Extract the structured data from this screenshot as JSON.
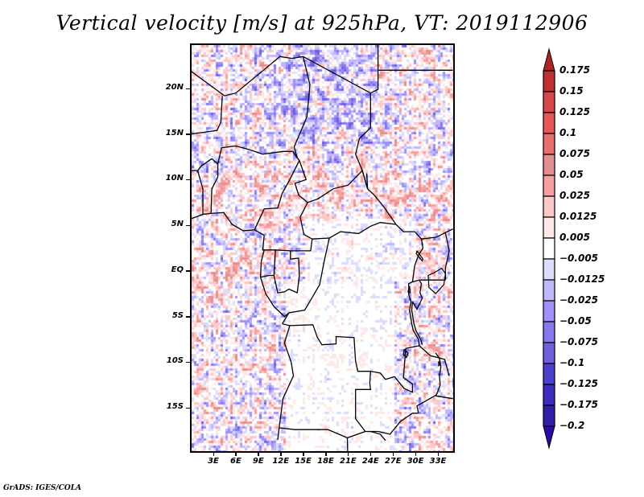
{
  "title": "Vertical velocity [m/s] at 925hPa, VT: 2019112906",
  "map": {
    "variable": "Vertical velocity",
    "units": "m/s",
    "level": "925hPa",
    "valid_time": "2019112906",
    "lon_range_deg": [
      0,
      35
    ],
    "lat_range_deg": [
      -20,
      25
    ],
    "y_ticks": [
      {
        "label": "20N",
        "lat": 20
      },
      {
        "label": "15N",
        "lat": 15
      },
      {
        "label": "10N",
        "lat": 10
      },
      {
        "label": "5N",
        "lat": 5
      },
      {
        "label": "EQ",
        "lat": 0
      },
      {
        "label": "5S",
        "lat": -5
      },
      {
        "label": "10S",
        "lat": -10
      },
      {
        "label": "15S",
        "lat": -15
      }
    ],
    "x_ticks": [
      {
        "label": "3E",
        "lon": 3
      },
      {
        "label": "6E",
        "lon": 6
      },
      {
        "label": "9E",
        "lon": 9
      },
      {
        "label": "12E",
        "lon": 12
      },
      {
        "label": "15E",
        "lon": 15
      },
      {
        "label": "18E",
        "lon": 18
      },
      {
        "label": "21E",
        "lon": 21
      },
      {
        "label": "24E",
        "lon": 24
      },
      {
        "label": "27E",
        "lon": 27
      },
      {
        "label": "30E",
        "lon": 30
      },
      {
        "label": "33E",
        "lon": 33
      }
    ]
  },
  "colorbar": {
    "labels": [
      "0.175",
      "0.15",
      "0.125",
      "0.1",
      "0.075",
      "0.05",
      "0.025",
      "0.0125",
      "0.005",
      "−0.005",
      "−0.0125",
      "−0.025",
      "−0.05",
      "−0.075",
      "−0.1",
      "−0.125",
      "−0.175",
      "−0.2"
    ],
    "levels": [
      0.175,
      0.15,
      0.125,
      0.1,
      0.075,
      0.05,
      0.025,
      0.0125,
      0.005,
      -0.005,
      -0.0125,
      -0.025,
      -0.05,
      -0.075,
      -0.1,
      -0.125,
      -0.175,
      -0.2
    ],
    "colors_top_to_bottom": [
      "#b22222",
      "#c03030",
      "#d84848",
      "#e85858",
      "#e87070",
      "#e49090",
      "#f8a0a0",
      "#fcc8c8",
      "#ffe8e8",
      "#ffffff",
      "#dcdcfc",
      "#c0b8fc",
      "#a090fc",
      "#8878f0",
      "#7060e0",
      "#4c40d0",
      "#3c2cc0",
      "#3020a8",
      "#2010a0"
    ],
    "over_color": "#b22222",
    "under_color": "#2a0aa8"
  },
  "footer": "GrADS: IGES/COLA"
}
